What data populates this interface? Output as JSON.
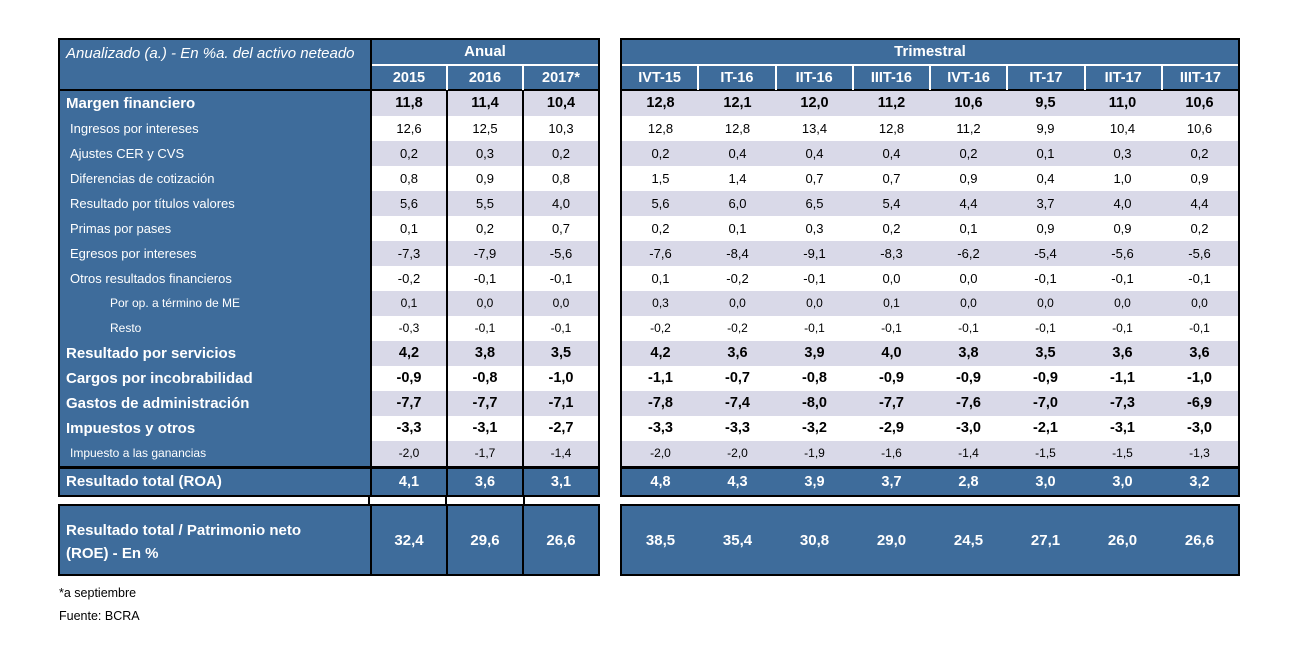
{
  "colors": {
    "header_blue": "#3E6C9B",
    "band_lavender": "#D9D9E8",
    "border_black": "#000000",
    "text_white": "#FFFFFF"
  },
  "table": {
    "corner_title": "Anualizado (a.) - En %a. del activo neteado",
    "anual_header": "Anual",
    "anual_columns": [
      "2015",
      "2016",
      "2017*"
    ],
    "trimestral_header": "Trimestral",
    "trimestral_columns": [
      "IVT-15",
      "IT-16",
      "IIT-16",
      "IIIT-16",
      "IVT-16",
      "IT-17",
      "IIT-17",
      "IIIT-17"
    ],
    "rows": [
      {
        "label": "Margen financiero",
        "style": "bold",
        "anual": [
          "11,8",
          "11,4",
          "10,4"
        ],
        "trimestral": [
          "12,8",
          "12,1",
          "12,0",
          "11,2",
          "10,6",
          "9,5",
          "11,0",
          "10,6"
        ]
      },
      {
        "label": "Ingresos por intereses",
        "style": "sub",
        "anual": [
          "12,6",
          "12,5",
          "10,3"
        ],
        "trimestral": [
          "12,8",
          "12,8",
          "13,4",
          "12,8",
          "11,2",
          "9,9",
          "10,4",
          "10,6"
        ]
      },
      {
        "label": "Ajustes CER y CVS",
        "style": "sub",
        "anual": [
          "0,2",
          "0,3",
          "0,2"
        ],
        "trimestral": [
          "0,2",
          "0,4",
          "0,4",
          "0,4",
          "0,2",
          "0,1",
          "0,3",
          "0,2"
        ]
      },
      {
        "label": "Diferencias de cotización",
        "style": "sub",
        "anual": [
          "0,8",
          "0,9",
          "0,8"
        ],
        "trimestral": [
          "1,5",
          "1,4",
          "0,7",
          "0,7",
          "0,9",
          "0,4",
          "1,0",
          "0,9"
        ]
      },
      {
        "label": "Resultado por títulos valores",
        "style": "sub",
        "anual": [
          "5,6",
          "5,5",
          "4,0"
        ],
        "trimestral": [
          "5,6",
          "6,0",
          "6,5",
          "5,4",
          "4,4",
          "3,7",
          "4,0",
          "4,4"
        ]
      },
      {
        "label": "Primas por pases",
        "style": "sub",
        "anual": [
          "0,1",
          "0,2",
          "0,7"
        ],
        "trimestral": [
          "0,2",
          "0,1",
          "0,3",
          "0,2",
          "0,1",
          "0,9",
          "0,9",
          "0,2"
        ]
      },
      {
        "label": "Egresos por intereses",
        "style": "sub",
        "anual": [
          "-7,3",
          "-7,9",
          "-5,6"
        ],
        "trimestral": [
          "-7,6",
          "-8,4",
          "-9,1",
          "-8,3",
          "-6,2",
          "-5,4",
          "-5,6",
          "-5,6"
        ]
      },
      {
        "label": "Otros resultados financieros",
        "style": "sub",
        "anual": [
          "-0,2",
          "-0,1",
          "-0,1"
        ],
        "trimestral": [
          "0,1",
          "-0,2",
          "-0,1",
          "0,0",
          "0,0",
          "-0,1",
          "-0,1",
          "-0,1"
        ]
      },
      {
        "label": "Por op. a término de ME",
        "style": "subsub",
        "anual": [
          "0,1",
          "0,0",
          "0,0"
        ],
        "trimestral": [
          "0,3",
          "0,0",
          "0,0",
          "0,1",
          "0,0",
          "0,0",
          "0,0",
          "0,0"
        ]
      },
      {
        "label": "Resto",
        "style": "subsub",
        "anual": [
          "-0,3",
          "-0,1",
          "-0,1"
        ],
        "trimestral": [
          "-0,2",
          "-0,2",
          "-0,1",
          "-0,1",
          "-0,1",
          "-0,1",
          "-0,1",
          "-0,1"
        ]
      },
      {
        "label": "Resultado por servicios",
        "style": "bold",
        "anual": [
          "4,2",
          "3,8",
          "3,5"
        ],
        "trimestral": [
          "4,2",
          "3,6",
          "3,9",
          "4,0",
          "3,8",
          "3,5",
          "3,6",
          "3,6"
        ]
      },
      {
        "label": "Cargos por incobrabilidad",
        "style": "bold",
        "anual": [
          "-0,9",
          "-0,8",
          "-1,0"
        ],
        "trimestral": [
          "-1,1",
          "-0,7",
          "-0,8",
          "-0,9",
          "-0,9",
          "-0,9",
          "-1,1",
          "-1,0"
        ]
      },
      {
        "label": "Gastos de administración",
        "style": "bold",
        "anual": [
          "-7,7",
          "-7,7",
          "-7,1"
        ],
        "trimestral": [
          "-7,8",
          "-7,4",
          "-8,0",
          "-7,7",
          "-7,6",
          "-7,0",
          "-7,3",
          "-6,9"
        ]
      },
      {
        "label": "Impuestos y otros",
        "style": "bold",
        "anual": [
          "-3,3",
          "-3,1",
          "-2,7"
        ],
        "trimestral": [
          "-3,3",
          "-3,3",
          "-3,2",
          "-2,9",
          "-3,0",
          "-2,1",
          "-3,1",
          "-3,0"
        ]
      },
      {
        "label": "Impuesto a las ganancias",
        "style": "small",
        "anual": [
          "-2,0",
          "-1,7",
          "-1,4"
        ],
        "trimestral": [
          "-2,0",
          "-2,0",
          "-1,9",
          "-1,6",
          "-1,4",
          "-1,5",
          "-1,5",
          "-1,3"
        ]
      }
    ],
    "total_row": {
      "label": "Resultado total (ROA)",
      "anual": [
        "4,1",
        "3,6",
        "3,1"
      ],
      "trimestral": [
        "4,8",
        "4,3",
        "3,9",
        "3,7",
        "2,8",
        "3,0",
        "3,0",
        "3,2"
      ]
    },
    "roe_row": {
      "label": "Resultado total / Patrimonio neto (ROE) - En %",
      "anual": [
        "32,4",
        "29,6",
        "26,6"
      ],
      "trimestral": [
        "38,5",
        "35,4",
        "30,8",
        "29,0",
        "24,5",
        "27,1",
        "26,0",
        "26,6"
      ]
    }
  },
  "footnotes": [
    "*a septiembre",
    "Fuente: BCRA"
  ]
}
